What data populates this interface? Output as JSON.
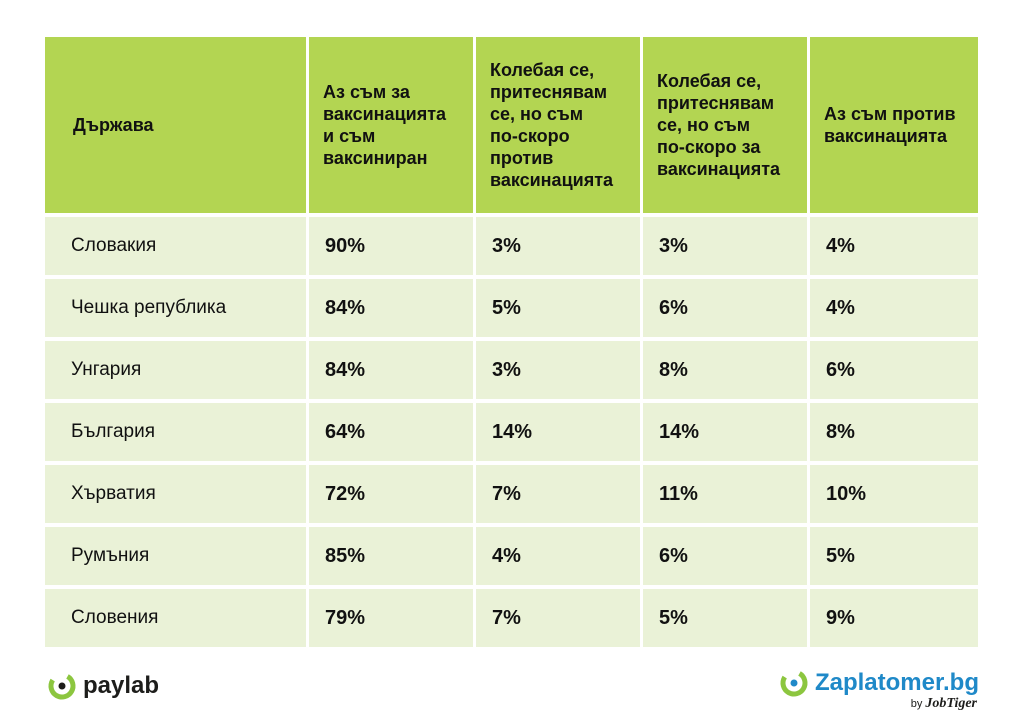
{
  "chart_data": {
    "type": "table",
    "columns": [
      "Държава",
      "Аз съм за ваксинацията и съм ваксиниран",
      "Колебая се, притеснявам се, но съм по-скоро против ваксинацията",
      "Колебая се, притеснявам се, но съм по-скоро за ваксинацията",
      "Аз съм против ваксинацията"
    ],
    "header_lines": [
      [
        "Държава"
      ],
      [
        "Аз съм за",
        "ваксинацията",
        "и съм",
        "ваксиниран"
      ],
      [
        "Колебая се,",
        "притеснявам",
        "се, но съм",
        "по-скоро",
        "против",
        "ваксинацията"
      ],
      [
        "Колебая се,",
        "притеснявам",
        "се, но съм",
        "по-скоро за",
        "ваксинацията"
      ],
      [
        "Аз съм против",
        "ваксинацията"
      ]
    ],
    "rows": [
      [
        "Словакия",
        "90%",
        "3%",
        "3%",
        "4%"
      ],
      [
        "Чешка република",
        "84%",
        "5%",
        "6%",
        "4%"
      ],
      [
        "Унгария",
        "84%",
        "3%",
        "8%",
        "6%"
      ],
      [
        "България",
        "64%",
        "14%",
        "14%",
        "8%"
      ],
      [
        "Хърватия",
        "72%",
        "7%",
        "11%",
        "10%"
      ],
      [
        "Румъния",
        "85%",
        "4%",
        "6%",
        "5%"
      ],
      [
        "Словения",
        "79%",
        "7%",
        "5%",
        "9%"
      ]
    ]
  },
  "footer": {
    "left_brand": "paylab",
    "right_brand": "Zaplatomer.bg",
    "right_by": "by",
    "right_by_brand": "JobTiger"
  },
  "colors": {
    "header_bg": "#b3d552",
    "row_bg": "#eaf2d7",
    "paylab_green": "#8cc63f",
    "zaplatomer_blue": "#1f89c8"
  }
}
